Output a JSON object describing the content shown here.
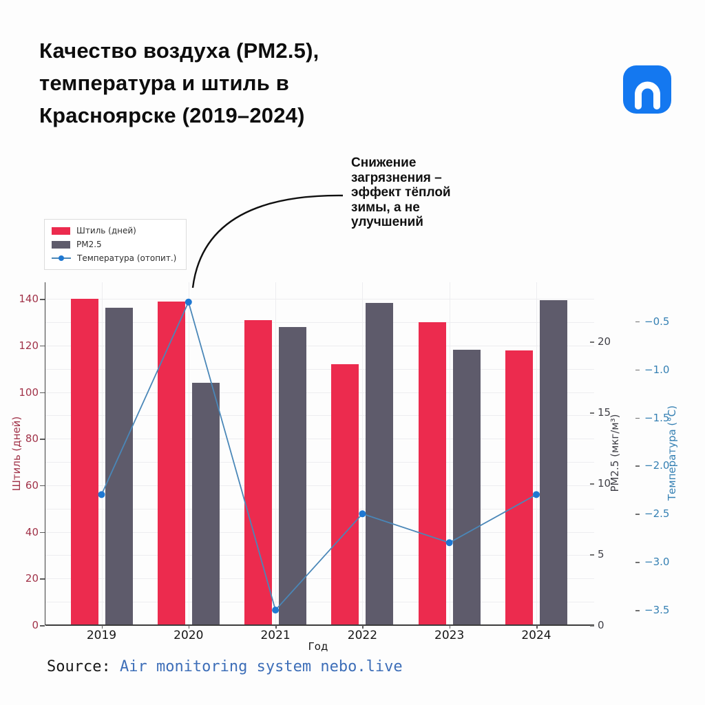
{
  "page": {
    "background": "#fdfdfd",
    "header": {
      "title_lines": [
        "Качество воздуха (PM2.5),",
        "температура и штиль в",
        "Красноярске (2019–2024)"
      ],
      "logo": {
        "label": "nebo.live logo",
        "background": "#1478F0",
        "glyph": "n-arch"
      }
    },
    "annotation": {
      "lines": [
        "Снижение",
        "загрязнения –",
        "эффект тёплой",
        "зимы, а не",
        "улучшений"
      ]
    },
    "source": {
      "prefix": "Source: ",
      "text": "Air monitoring system nebo.live",
      "text_color": "#3D6EB8"
    }
  },
  "chart_data": {
    "type": "bar",
    "subtype": "grouped bars + line, one left axis and two right axes",
    "categories": [
      "2019",
      "2020",
      "2021",
      "2022",
      "2023",
      "2024"
    ],
    "series": [
      {
        "name": "Штиль (дней)",
        "type": "bar",
        "yaxis": "left",
        "color": "#EC2B4E",
        "values": [
          140,
          139,
          131,
          112,
          130,
          118
        ]
      },
      {
        "name": "PM2.5",
        "type": "bar",
        "yaxis": "pm25",
        "color": "#5E5B6B",
        "values": [
          22.4,
          17.1,
          21.0,
          22.7,
          19.4,
          22.9
        ]
      },
      {
        "name": "Температура (отопит.)",
        "type": "line",
        "yaxis": "temp",
        "color": "#4A87B8",
        "marker_color": "#1F78D2",
        "values": [
          -2.3,
          -0.3,
          -3.5,
          -2.5,
          -2.8,
          -2.3
        ]
      }
    ],
    "xlabel": "Год",
    "axes": {
      "left": {
        "title": "Штиль (дней)",
        "color": "#A13349",
        "range": [
          0,
          147
        ],
        "grid_step": 10,
        "tick_values": [
          0,
          20,
          40,
          60,
          80,
          100,
          120,
          140
        ],
        "tick_labels": [
          "0",
          "20",
          "40",
          "60",
          "80",
          "100",
          "120",
          "140"
        ]
      },
      "pm25": {
        "title": "PM2.5 (мкг/м³)",
        "color": "#3F3F46",
        "range": [
          0,
          24.2
        ],
        "tick_values": [
          0,
          5,
          10,
          15,
          20
        ],
        "tick_labels": [
          "0",
          "5",
          "10",
          "15",
          "20"
        ]
      },
      "temp": {
        "title": "Температура (°C)",
        "color": "#3580B3",
        "range": [
          -3.66,
          -0.2
        ],
        "tick_values": [
          -0.5,
          -1.0,
          -1.5,
          -2.0,
          -2.5,
          -3.0,
          -3.5
        ],
        "tick_labels": [
          "−0.5",
          "−1.0",
          "−1.5",
          "−2.0",
          "−2.5",
          "−3.0",
          "−3.5"
        ]
      }
    },
    "legend": {
      "position": "outside-top-left",
      "entries": [
        "Штиль (дней)",
        "PM2.5",
        "Температура (отопит.)"
      ]
    },
    "grid": true
  }
}
